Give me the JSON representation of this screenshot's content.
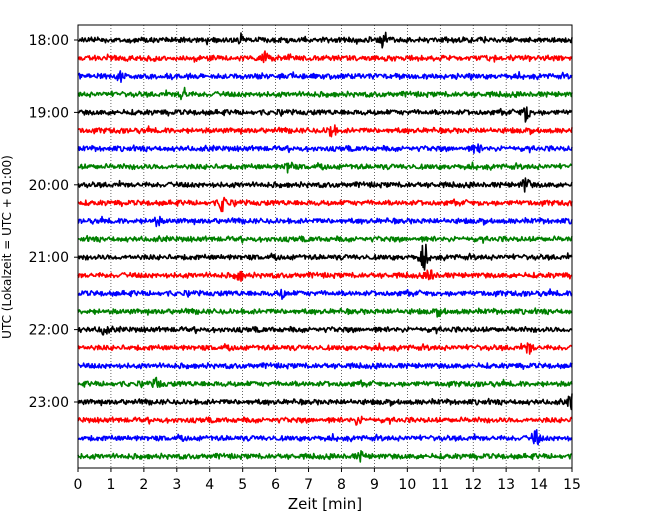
{
  "chart_data": {
    "type": "line",
    "xlabel": "Zeit  [min]",
    "ylabel": "UTC (Lokalzeit = UTC + 01:00)",
    "xlim": [
      0,
      15
    ],
    "x_ticks": [
      0,
      1,
      2,
      3,
      4,
      5,
      6,
      7,
      8,
      9,
      10,
      11,
      12,
      13,
      14,
      15
    ],
    "y_tick_labels": [
      "18:00",
      "19:00",
      "20:00",
      "21:00",
      "22:00",
      "23:00"
    ],
    "trace_interval_min": 15,
    "trace_start": "18:00",
    "trace_count": 24,
    "trace_colors": [
      "#000000",
      "#ff0000",
      "#0000ff",
      "#008000"
    ],
    "grid": "vertical dotted at each minute",
    "events": [
      {
        "trace": "18:00",
        "t": 9.3,
        "amp": 1.0
      },
      {
        "trace": "18:00",
        "t": 5.0,
        "amp": 0.6
      },
      {
        "trace": "18:15",
        "t": 5.7,
        "amp": 0.6
      },
      {
        "trace": "18:30",
        "t": 1.3,
        "amp": 0.5
      },
      {
        "trace": "18:45",
        "t": 3.2,
        "amp": 0.6
      },
      {
        "trace": "19:00",
        "t": 13.6,
        "amp": 0.9
      },
      {
        "trace": "19:15",
        "t": 7.7,
        "amp": 0.8
      },
      {
        "trace": "19:30",
        "t": 12.1,
        "amp": 0.5
      },
      {
        "trace": "19:45",
        "t": 6.4,
        "amp": 0.6
      },
      {
        "trace": "20:00",
        "t": 13.6,
        "amp": 0.8
      },
      {
        "trace": "20:15",
        "t": 4.4,
        "amp": 0.9
      },
      {
        "trace": "20:30",
        "t": 2.4,
        "amp": 0.4
      },
      {
        "trace": "21:00",
        "t": 10.5,
        "amp": 1.4
      },
      {
        "trace": "21:15",
        "t": 4.9,
        "amp": 0.5
      },
      {
        "trace": "21:15",
        "t": 10.7,
        "amp": 0.6
      },
      {
        "trace": "21:30",
        "t": 6.2,
        "amp": 0.4
      },
      {
        "trace": "21:45",
        "t": 11.0,
        "amp": 0.4
      },
      {
        "trace": "22:00",
        "t": 0.8,
        "amp": 0.5
      },
      {
        "trace": "22:15",
        "t": 13.7,
        "amp": 0.6
      },
      {
        "trace": "22:45",
        "t": 2.4,
        "amp": 0.5
      },
      {
        "trace": "23:00",
        "t": 15.0,
        "amp": 0.9
      },
      {
        "trace": "23:15",
        "t": 8.5,
        "amp": 0.4
      },
      {
        "trace": "23:30",
        "t": 13.9,
        "amp": 0.8
      },
      {
        "trace": "23:45",
        "t": 8.6,
        "amp": 0.4
      }
    ]
  }
}
